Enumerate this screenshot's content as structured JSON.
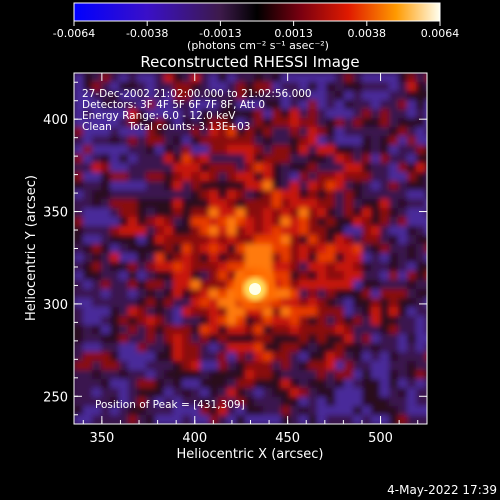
{
  "colorbar": {
    "ticks": [
      "-0.0064",
      "-0.0038",
      "-0.0013",
      "0.0013",
      "0.0038",
      "0.0064"
    ],
    "unit_label": "(photons cm⁻² s⁻¹ asec⁻²)"
  },
  "chart_data": {
    "type": "heatmap",
    "title": "Reconstructed RHESSI Image",
    "xlabel": "Heliocentric X (arcsec)",
    "ylabel": "Heliocentric Y (arcsec)",
    "x_ticks": [
      "350",
      "400",
      "450",
      "500"
    ],
    "y_ticks": [
      "250",
      "300",
      "350",
      "400"
    ],
    "xlim": [
      335,
      525
    ],
    "ylim": [
      235,
      425
    ],
    "colorbar_range": [
      -0.0064,
      0.0064
    ],
    "peak": {
      "x": 431,
      "y": 309
    },
    "annotations": [
      "27-Dec-2002 21:02:00.000 to 21:02:56.000",
      "Detectors: 3F 4F 5F 6F 7F 8F, Att 0",
      "Energy Range: 6.0 - 12.0 keV",
      "Clean     Total counts: 3.13E+03",
      "Position of Peak = [431,309]"
    ]
  },
  "footer": {
    "timestamp": "4-May-2022 17:39"
  }
}
